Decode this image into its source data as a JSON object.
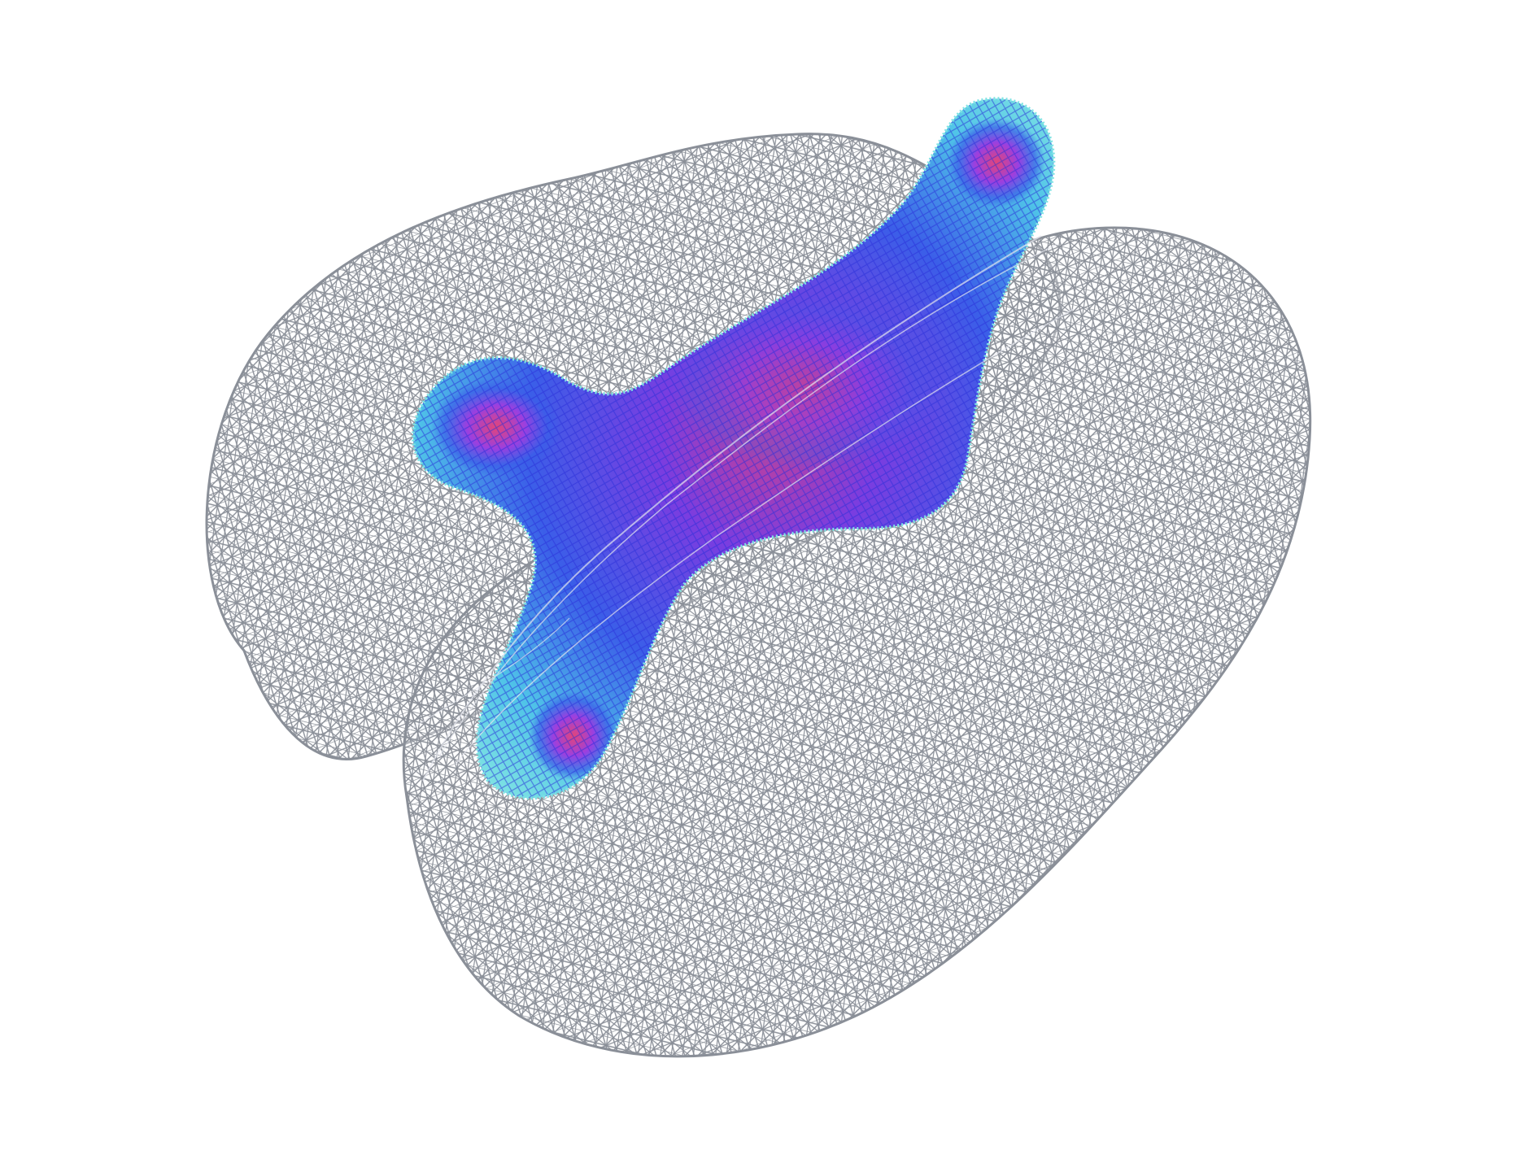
{
  "scene": {
    "background_color": "#ffffff",
    "wireframe_color": "#8a8f98",
    "wireframe_highlight_color": "#e4e6ee",
    "volume_colormap": [
      "#7fe3e3",
      "#4fc3e8",
      "#3b5ee8",
      "#7a3de0",
      "#e2457a"
    ],
    "objects": [
      {
        "name": "upper-left-lobe",
        "style": "wireframe-mesh"
      },
      {
        "name": "lower-right-lobe",
        "style": "wireframe-mesh"
      },
      {
        "name": "inner-volume",
        "style": "colored-glyph-volume"
      }
    ]
  }
}
